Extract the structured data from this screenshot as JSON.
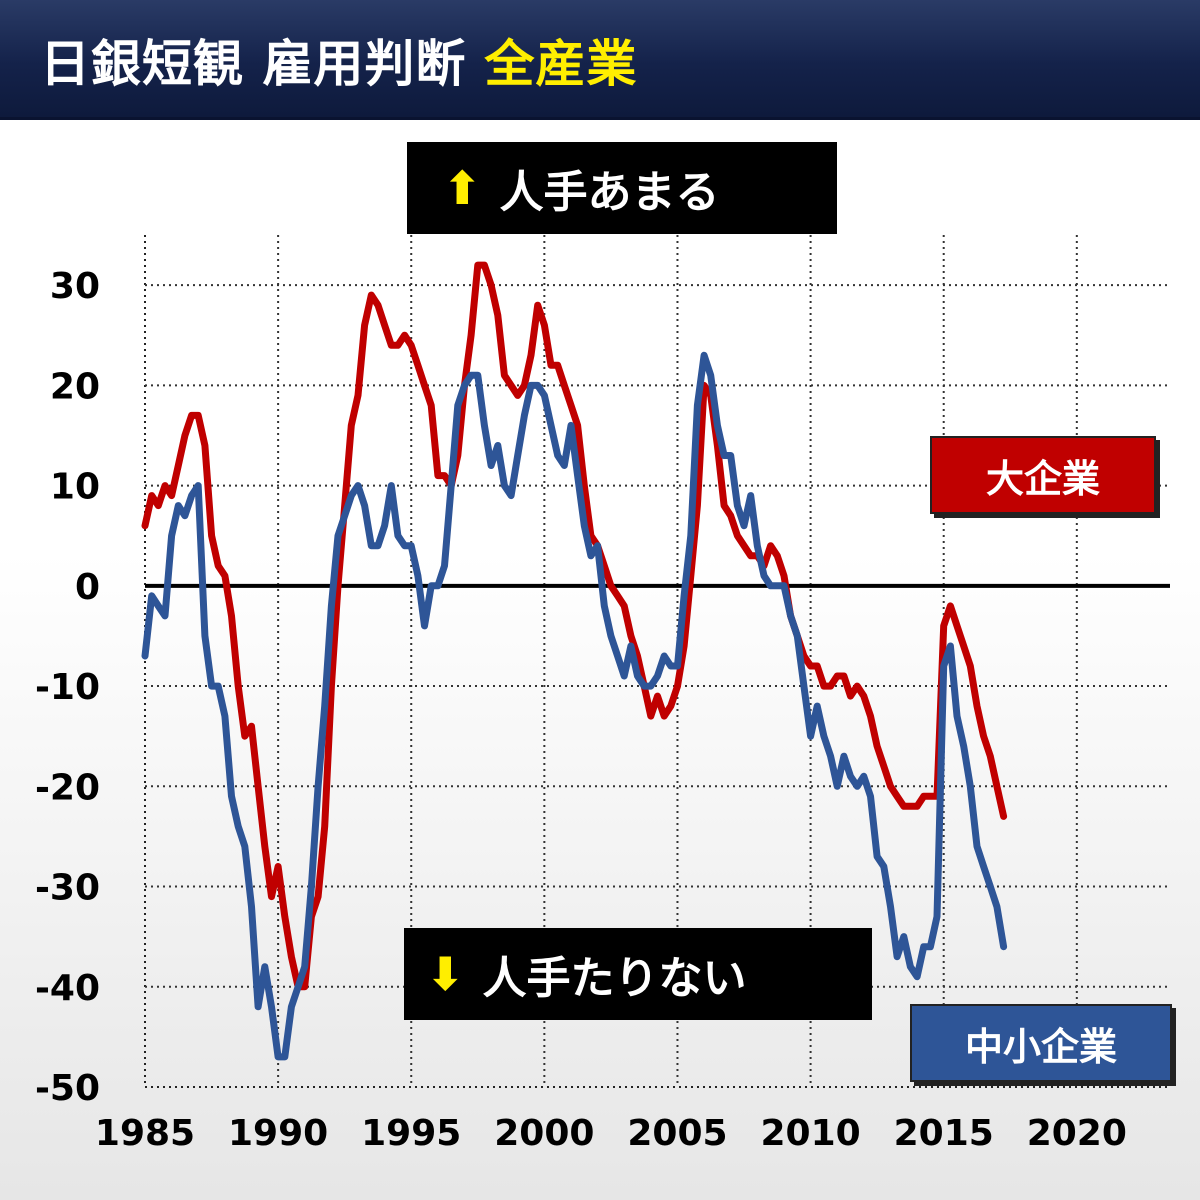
{
  "header": {
    "title_main": "日銀短観 雇用判断",
    "title_highlight": "全産業"
  },
  "annotations": {
    "top_text": "人手あまる",
    "top_arrow": "⬆",
    "bottom_text": "人手たりない",
    "bottom_arrow": "⬇"
  },
  "legend": {
    "large": "大企業",
    "small": "中小企業"
  },
  "colors": {
    "large": "#c00000",
    "small": "#2e5597",
    "header_bg": "#16254d",
    "highlight": "#ffee00"
  },
  "chart_data": {
    "type": "line",
    "x_ticks": [
      "1985",
      "1990",
      "1995",
      "2000",
      "2005",
      "2010",
      "2015",
      "2020"
    ],
    "y_ticks": [
      "30",
      "20",
      "10",
      "0",
      "-10",
      "-20",
      "-30",
      "-40",
      "-50"
    ],
    "xlim": [
      1985,
      2023.5
    ],
    "ylim": [
      -50,
      35
    ],
    "grid": true,
    "zero_line": true,
    "series": [
      {
        "name": "大企業",
        "color": "#c00000",
        "points": [
          [
            1985.0,
            6
          ],
          [
            1985.25,
            9
          ],
          [
            1985.5,
            8
          ],
          [
            1985.75,
            10
          ],
          [
            1986.0,
            9
          ],
          [
            1986.25,
            12
          ],
          [
            1986.5,
            15
          ],
          [
            1986.75,
            17
          ],
          [
            1987.0,
            17
          ],
          [
            1987.25,
            14
          ],
          [
            1987.5,
            5
          ],
          [
            1987.75,
            2
          ],
          [
            1988.0,
            1
          ],
          [
            1988.25,
            -3
          ],
          [
            1988.5,
            -10
          ],
          [
            1988.75,
            -15
          ],
          [
            1989.0,
            -14
          ],
          [
            1989.25,
            -20
          ],
          [
            1989.5,
            -26
          ],
          [
            1989.75,
            -31
          ],
          [
            1990.0,
            -28
          ],
          [
            1990.25,
            -33
          ],
          [
            1990.5,
            -37
          ],
          [
            1990.75,
            -40
          ],
          [
            1991.0,
            -40
          ],
          [
            1991.25,
            -33
          ],
          [
            1991.5,
            -31
          ],
          [
            1991.75,
            -24
          ],
          [
            1992.0,
            -10
          ],
          [
            1992.25,
            0
          ],
          [
            1992.5,
            8
          ],
          [
            1992.75,
            16
          ],
          [
            1993.0,
            19
          ],
          [
            1993.25,
            26
          ],
          [
            1993.5,
            29
          ],
          [
            1993.75,
            28
          ],
          [
            1994.0,
            26
          ],
          [
            1994.25,
            24
          ],
          [
            1994.5,
            24
          ],
          [
            1994.75,
            25
          ],
          [
            1995.0,
            24
          ],
          [
            1995.25,
            22
          ],
          [
            1995.5,
            20
          ],
          [
            1995.75,
            18
          ],
          [
            1996.0,
            11
          ],
          [
            1996.25,
            11
          ],
          [
            1996.5,
            10
          ],
          [
            1996.75,
            13
          ],
          [
            1997.0,
            20
          ],
          [
            1997.25,
            25
          ],
          [
            1997.5,
            32
          ],
          [
            1997.75,
            32
          ],
          [
            1998.0,
            30
          ],
          [
            1998.25,
            27
          ],
          [
            1998.5,
            21
          ],
          [
            1998.75,
            20
          ],
          [
            1999.0,
            19
          ],
          [
            1999.25,
            20
          ],
          [
            1999.5,
            23
          ],
          [
            1999.75,
            28
          ],
          [
            2000.0,
            26
          ],
          [
            2000.25,
            22
          ],
          [
            2000.5,
            22
          ],
          [
            2000.75,
            20
          ],
          [
            2001.0,
            18
          ],
          [
            2001.25,
            16
          ],
          [
            2001.5,
            10
          ],
          [
            2001.75,
            5
          ],
          [
            2002.0,
            4
          ],
          [
            2002.25,
            2
          ],
          [
            2002.5,
            0
          ],
          [
            2002.75,
            -1
          ],
          [
            2003.0,
            -2
          ],
          [
            2003.25,
            -5
          ],
          [
            2003.5,
            -7
          ],
          [
            2003.75,
            -10
          ],
          [
            2004.0,
            -13
          ],
          [
            2004.25,
            -11
          ],
          [
            2004.5,
            -13
          ],
          [
            2004.75,
            -12
          ],
          [
            2005.0,
            -10
          ],
          [
            2005.25,
            -6
          ],
          [
            2005.5,
            1
          ],
          [
            2005.75,
            8
          ],
          [
            2006.0,
            20
          ],
          [
            2006.25,
            19
          ],
          [
            2006.5,
            14
          ],
          [
            2006.75,
            8
          ],
          [
            2007.0,
            7
          ],
          [
            2007.25,
            5
          ],
          [
            2007.5,
            4
          ],
          [
            2007.75,
            3
          ],
          [
            2008.0,
            3
          ],
          [
            2008.25,
            2
          ],
          [
            2008.5,
            4
          ],
          [
            2008.75,
            3
          ],
          [
            2009.0,
            1
          ],
          [
            2009.25,
            -3
          ],
          [
            2009.5,
            -5
          ],
          [
            2009.75,
            -7
          ],
          [
            2010.0,
            -8
          ],
          [
            2010.25,
            -8
          ],
          [
            2010.5,
            -10
          ],
          [
            2010.75,
            -10
          ],
          [
            2011.0,
            -9
          ],
          [
            2011.25,
            -9
          ],
          [
            2011.5,
            -11
          ],
          [
            2011.75,
            -10
          ],
          [
            2012.0,
            -11
          ],
          [
            2012.25,
            -13
          ],
          [
            2012.5,
            -16
          ],
          [
            2012.75,
            -18
          ],
          [
            2013.0,
            -20
          ],
          [
            2013.25,
            -21
          ],
          [
            2013.5,
            -22
          ],
          [
            2013.75,
            -22
          ],
          [
            2014.0,
            -22
          ],
          [
            2014.25,
            -21
          ],
          [
            2014.5,
            -21
          ],
          [
            2014.75,
            -21
          ],
          [
            2015.0,
            -4
          ],
          [
            2015.25,
            -2
          ],
          [
            2015.5,
            -4
          ],
          [
            2015.75,
            -6
          ],
          [
            2016.0,
            -8
          ],
          [
            2016.25,
            -12
          ],
          [
            2016.5,
            -15
          ],
          [
            2016.75,
            -17
          ],
          [
            2017.0,
            -20
          ],
          [
            2017.25,
            -23
          ]
        ]
      },
      {
        "name": "中小企業",
        "color": "#2e5597",
        "points": [
          [
            1985.0,
            -7
          ],
          [
            1985.25,
            -1
          ],
          [
            1985.5,
            -2
          ],
          [
            1985.75,
            -3
          ],
          [
            1986.0,
            5
          ],
          [
            1986.25,
            8
          ],
          [
            1986.5,
            7
          ],
          [
            1986.75,
            9
          ],
          [
            1987.0,
            10
          ],
          [
            1987.25,
            -5
          ],
          [
            1987.5,
            -10
          ],
          [
            1987.75,
            -10
          ],
          [
            1988.0,
            -13
          ],
          [
            1988.25,
            -21
          ],
          [
            1988.5,
            -24
          ],
          [
            1988.75,
            -26
          ],
          [
            1989.0,
            -32
          ],
          [
            1989.25,
            -42
          ],
          [
            1989.5,
            -38
          ],
          [
            1989.75,
            -42
          ],
          [
            1990.0,
            -47
          ],
          [
            1990.25,
            -47
          ],
          [
            1990.5,
            -42
          ],
          [
            1990.75,
            -40
          ],
          [
            1991.0,
            -38
          ],
          [
            1991.25,
            -30
          ],
          [
            1991.5,
            -20
          ],
          [
            1991.75,
            -12
          ],
          [
            1992.0,
            -2
          ],
          [
            1992.25,
            5
          ],
          [
            1992.5,
            7
          ],
          [
            1992.75,
            9
          ],
          [
            1993.0,
            10
          ],
          [
            1993.25,
            8
          ],
          [
            1993.5,
            4
          ],
          [
            1993.75,
            4
          ],
          [
            1994.0,
            6
          ],
          [
            1994.25,
            10
          ],
          [
            1994.5,
            5
          ],
          [
            1994.75,
            4
          ],
          [
            1995.0,
            4
          ],
          [
            1995.25,
            1
          ],
          [
            1995.5,
            -4
          ],
          [
            1995.75,
            0
          ],
          [
            1996.0,
            0
          ],
          [
            1996.25,
            2
          ],
          [
            1996.5,
            10
          ],
          [
            1996.75,
            18
          ],
          [
            1997.0,
            20
          ],
          [
            1997.25,
            21
          ],
          [
            1997.5,
            21
          ],
          [
            1997.75,
            16
          ],
          [
            1998.0,
            12
          ],
          [
            1998.25,
            14
          ],
          [
            1998.5,
            10
          ],
          [
            1998.75,
            9
          ],
          [
            1999.0,
            13
          ],
          [
            1999.25,
            17
          ],
          [
            1999.5,
            20
          ],
          [
            1999.75,
            20
          ],
          [
            2000.0,
            19
          ],
          [
            2000.25,
            16
          ],
          [
            2000.5,
            13
          ],
          [
            2000.75,
            12
          ],
          [
            2001.0,
            16
          ],
          [
            2001.25,
            11
          ],
          [
            2001.5,
            6
          ],
          [
            2001.75,
            3
          ],
          [
            2002.0,
            4
          ],
          [
            2002.25,
            -2
          ],
          [
            2002.5,
            -5
          ],
          [
            2002.75,
            -7
          ],
          [
            2003.0,
            -9
          ],
          [
            2003.25,
            -6
          ],
          [
            2003.5,
            -9
          ],
          [
            2003.75,
            -10
          ],
          [
            2004.0,
            -10
          ],
          [
            2004.25,
            -9
          ],
          [
            2004.5,
            -7
          ],
          [
            2004.75,
            -8
          ],
          [
            2005.0,
            -8
          ],
          [
            2005.25,
            -1
          ],
          [
            2005.5,
            5
          ],
          [
            2005.75,
            18
          ],
          [
            2006.0,
            23
          ],
          [
            2006.25,
            21
          ],
          [
            2006.5,
            16
          ],
          [
            2006.75,
            13
          ],
          [
            2007.0,
            13
          ],
          [
            2007.25,
            8
          ],
          [
            2007.5,
            6
          ],
          [
            2007.75,
            9
          ],
          [
            2008.0,
            4
          ],
          [
            2008.25,
            1
          ],
          [
            2008.5,
            0
          ],
          [
            2008.75,
            0
          ],
          [
            2009.0,
            0
          ],
          [
            2009.25,
            -3
          ],
          [
            2009.5,
            -5
          ],
          [
            2009.75,
            -10
          ],
          [
            2010.0,
            -15
          ],
          [
            2010.25,
            -12
          ],
          [
            2010.5,
            -15
          ],
          [
            2010.75,
            -17
          ],
          [
            2011.0,
            -20
          ],
          [
            2011.25,
            -17
          ],
          [
            2011.5,
            -19
          ],
          [
            2011.75,
            -20
          ],
          [
            2012.0,
            -19
          ],
          [
            2012.25,
            -21
          ],
          [
            2012.5,
            -27
          ],
          [
            2012.75,
            -28
          ],
          [
            2013.0,
            -32
          ],
          [
            2013.25,
            -37
          ],
          [
            2013.5,
            -35
          ],
          [
            2013.75,
            -38
          ],
          [
            2014.0,
            -39
          ],
          [
            2014.25,
            -36
          ],
          [
            2014.5,
            -36
          ],
          [
            2014.75,
            -33
          ],
          [
            2015.0,
            -8
          ],
          [
            2015.25,
            -6
          ],
          [
            2015.5,
            -13
          ],
          [
            2015.75,
            -16
          ],
          [
            2016.0,
            -20
          ],
          [
            2016.25,
            -26
          ],
          [
            2016.5,
            -28
          ],
          [
            2016.75,
            -30
          ],
          [
            2017.0,
            -32
          ],
          [
            2017.25,
            -36
          ]
        ]
      }
    ]
  }
}
